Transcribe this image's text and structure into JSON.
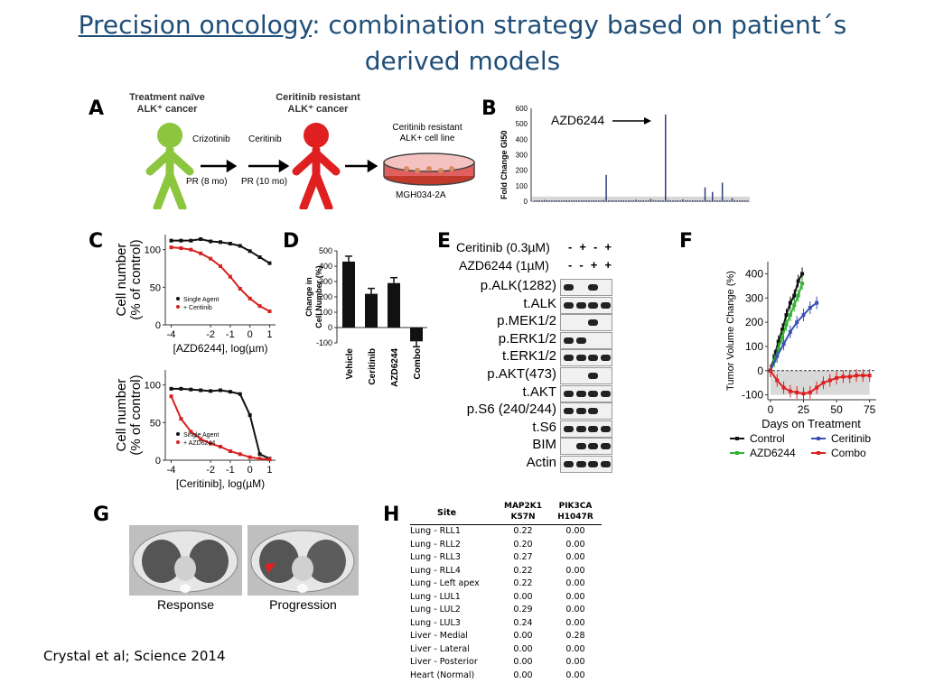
{
  "slide": {
    "title_part1": "Precision oncology",
    "title_part2": ": combination strategy based on patient´s",
    "title_line2": "derived models",
    "citation": "Crystal et al; Science 2014"
  },
  "panel_labels": [
    "A",
    "B",
    "C",
    "D",
    "E",
    "F",
    "G",
    "H"
  ],
  "panelA": {
    "naive_l1": "Treatment naïve",
    "naive_l2": "ALK⁺ cancer",
    "resist_l1": "Ceritinib resistant",
    "resist_l2": "ALK⁺ cancer",
    "drug1": "Crizotinib",
    "drug2": "Ceritinib",
    "pr1": "PR (8 mo)",
    "pr2": "PR (10 mo)",
    "line_l1": "Ceritinib resistant",
    "line_l2": "ALK+ cell line",
    "dish": "MGH034-2A",
    "green": "#8cc63f",
    "red": "#e02020"
  },
  "chart_data": [
    {
      "id": "B",
      "type": "bar",
      "ylabel": "Fold Change GI50",
      "annotation": "AZD6244",
      "yticks": [
        0,
        100,
        200,
        300,
        400,
        500,
        600
      ],
      "ylim": [
        0,
        600
      ],
      "values": [
        2,
        3,
        5,
        2,
        8,
        3,
        2,
        4,
        3,
        6,
        2,
        3,
        5,
        4,
        2,
        3,
        2,
        6,
        4,
        3,
        5,
        2,
        3,
        2,
        4,
        6,
        3,
        2,
        8,
        170,
        4,
        3,
        2,
        5,
        4,
        3,
        2,
        6,
        3,
        2,
        5,
        10,
        3,
        2,
        4,
        5,
        3,
        15,
        7,
        2,
        3,
        5,
        4,
        560,
        8,
        3,
        2,
        5,
        4,
        3,
        12,
        3,
        2,
        4,
        3,
        2,
        5,
        3,
        2,
        90,
        4,
        3,
        60,
        5,
        2,
        3,
        120,
        4,
        3,
        2,
        20,
        4,
        3,
        2,
        5,
        3,
        2
      ]
    },
    {
      "id": "C-top",
      "type": "line",
      "ylabel_l1": "Cell number",
      "ylabel_l2": "(% of control)",
      "xlabel": "[AZD6244], log(µm)",
      "xticks": [
        -4,
        -2,
        -1,
        0,
        1
      ],
      "yticks": [
        0,
        50,
        100
      ],
      "xlim": [
        -4.3,
        1.3
      ],
      "ylim": [
        0,
        120
      ],
      "legend": [
        "Single Agent",
        "+ Ceritinib"
      ],
      "series": [
        {
          "name": "Single Agent",
          "color": "#111",
          "x": [
            -4,
            -3.5,
            -3,
            -2.5,
            -2,
            -1.5,
            -1,
            -0.5,
            0,
            0.5,
            1
          ],
          "y": [
            112,
            112,
            112,
            114,
            111,
            110,
            108,
            105,
            98,
            90,
            82
          ]
        },
        {
          "name": "+ Ceritinib",
          "color": "#d82020",
          "x": [
            -4,
            -3.5,
            -3,
            -2.5,
            -2,
            -1.5,
            -1,
            -0.5,
            0,
            0.5,
            1
          ],
          "y": [
            103,
            102,
            100,
            95,
            88,
            78,
            64,
            48,
            35,
            25,
            18
          ]
        }
      ]
    },
    {
      "id": "C-bottom",
      "type": "line",
      "ylabel_l1": "Cell number",
      "ylabel_l2": "(% of control)",
      "xlabel": "[Ceritinib], log(µM)",
      "xticks": [
        -4,
        -2,
        -1,
        0,
        1
      ],
      "yticks": [
        0,
        50,
        100
      ],
      "xlim": [
        -4.3,
        1.3
      ],
      "ylim": [
        0,
        120
      ],
      "legend": [
        "Single Agent",
        "+ AZD6244"
      ],
      "series": [
        {
          "name": "Single Agent",
          "color": "#111",
          "x": [
            -4,
            -3.5,
            -3,
            -2.5,
            -2,
            -1.5,
            -1,
            -0.5,
            0,
            0.5,
            1
          ],
          "y": [
            95,
            95,
            94,
            93,
            92,
            93,
            91,
            88,
            60,
            8,
            2
          ]
        },
        {
          "name": "+ AZD6244",
          "color": "#d82020",
          "x": [
            -4,
            -3.5,
            -3,
            -2.5,
            -2,
            -1.5,
            -1,
            -0.5,
            0,
            0.5,
            1
          ],
          "y": [
            85,
            55,
            38,
            28,
            22,
            18,
            12,
            8,
            4,
            2,
            1
          ]
        }
      ]
    },
    {
      "id": "D",
      "type": "bar",
      "ylabel_l1": "Change in",
      "ylabel_l2": "Cell Number (%)",
      "categories": [
        "Vehicle",
        "Ceritinib",
        "AZD6244",
        "Combo"
      ],
      "values": [
        430,
        220,
        290,
        -90
      ],
      "yticks": [
        -100,
        0,
        100,
        200,
        300,
        400,
        500
      ],
      "ylim": [
        -100,
        500
      ]
    },
    {
      "id": "F",
      "type": "line",
      "ylabel": "Tumor Volume Change (%)",
      "xlabel": "Days on Treatment",
      "xticks": [
        0,
        25,
        50,
        75
      ],
      "yticks": [
        -100,
        0,
        100,
        200,
        300,
        400
      ],
      "xlim": [
        -2,
        80
      ],
      "ylim": [
        -120,
        450
      ],
      "series": [
        {
          "name": "Control",
          "color": "#111",
          "x": [
            0,
            3,
            6,
            9,
            12,
            15,
            18,
            21,
            24
          ],
          "y": [
            0,
            60,
            120,
            170,
            230,
            280,
            310,
            370,
            400
          ]
        },
        {
          "name": "AZD6244",
          "color": "#33b233",
          "x": [
            0,
            3,
            6,
            9,
            12,
            15,
            18,
            21,
            24
          ],
          "y": [
            0,
            40,
            90,
            140,
            190,
            230,
            270,
            310,
            360
          ]
        },
        {
          "name": "Ceritinib",
          "color": "#3a4fb8",
          "x": [
            0,
            5,
            10,
            15,
            20,
            25,
            30,
            35
          ],
          "y": [
            0,
            60,
            110,
            160,
            200,
            230,
            260,
            280
          ]
        },
        {
          "name": "Combo",
          "color": "#e02020",
          "x": [
            0,
            5,
            10,
            15,
            20,
            25,
            30,
            35,
            40,
            45,
            50,
            55,
            60,
            65,
            70,
            75
          ],
          "y": [
            0,
            -40,
            -70,
            -85,
            -90,
            -95,
            -90,
            -70,
            -50,
            -40,
            -30,
            -25,
            -25,
            -20,
            -20,
            -20
          ]
        }
      ]
    }
  ],
  "panelE": {
    "cond1": "Ceritinib (0.3µM)",
    "cond2": "AZD6244 (1µM)",
    "cond1_signs": [
      "-",
      "+",
      "-",
      "+"
    ],
    "cond2_signs": [
      "-",
      "-",
      "+",
      "+"
    ],
    "rows": [
      {
        "label": "p.ALK(1282)",
        "bands": [
          1,
          0,
          1,
          0
        ]
      },
      {
        "label": "t.ALK",
        "bands": [
          1,
          1,
          1,
          1
        ]
      },
      {
        "label": "p.MEK1/2",
        "bands": [
          0,
          0,
          1,
          0
        ]
      },
      {
        "label": "p.ERK1/2",
        "bands": [
          1,
          1,
          0,
          0
        ]
      },
      {
        "label": "t.ERK1/2",
        "bands": [
          1,
          1,
          1,
          1
        ]
      },
      {
        "label": "p.AKT(473)",
        "bands": [
          0,
          0,
          1,
          0
        ]
      },
      {
        "label": "t.AKT",
        "bands": [
          1,
          1,
          1,
          1
        ]
      },
      {
        "label": "p.S6 (240/244)",
        "bands": [
          1,
          1,
          1,
          0
        ]
      },
      {
        "label": "t.S6",
        "bands": [
          1,
          1,
          1,
          1
        ]
      },
      {
        "label": "BIM",
        "bands": [
          0,
          1,
          1,
          1
        ]
      },
      {
        "label": "Actin",
        "bands": [
          1,
          1,
          1,
          1
        ]
      }
    ]
  },
  "panelG": {
    "left_label": "Response",
    "right_label": "Progression"
  },
  "panelH": {
    "headers": [
      "Site",
      "MAP2K1 K57N",
      "PIK3CA H1047R"
    ],
    "rows": [
      [
        "Lung - RLL1",
        "0.22",
        "0.00"
      ],
      [
        "Lung - RLL2",
        "0.20",
        "0.00"
      ],
      [
        "Lung - RLL3",
        "0.27",
        "0.00"
      ],
      [
        "Lung - RLL4",
        "0.22",
        "0.00"
      ],
      [
        "Lung - Left apex",
        "0.22",
        "0.00"
      ],
      [
        "Lung - LUL1",
        "0.00",
        "0.00"
      ],
      [
        "Lung - LUL2",
        "0.29",
        "0.00"
      ],
      [
        "Lung - LUL3",
        "0.24",
        "0.00"
      ],
      [
        "Liver - Medial",
        "0.00",
        "0.28"
      ],
      [
        "Liver - Lateral",
        "0.00",
        "0.00"
      ],
      [
        "Liver - Posterior",
        "0.00",
        "0.00"
      ],
      [
        "Heart (Normal)",
        "0.00",
        "0.00"
      ]
    ]
  }
}
